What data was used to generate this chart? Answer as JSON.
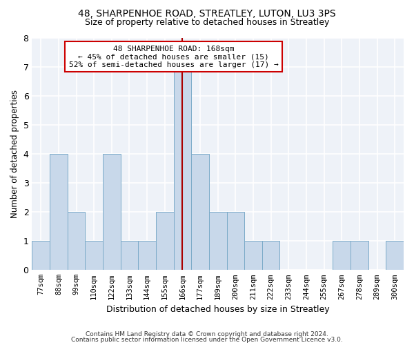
{
  "title": "48, SHARPENHOE ROAD, STREATLEY, LUTON, LU3 3PS",
  "subtitle": "Size of property relative to detached houses in Streatley",
  "xlabel": "Distribution of detached houses by size in Streatley",
  "ylabel": "Number of detached properties",
  "categories": [
    "77sqm",
    "88sqm",
    "99sqm",
    "110sqm",
    "122sqm",
    "133sqm",
    "144sqm",
    "155sqm",
    "166sqm",
    "177sqm",
    "189sqm",
    "200sqm",
    "211sqm",
    "222sqm",
    "233sqm",
    "244sqm",
    "255sqm",
    "267sqm",
    "278sqm",
    "289sqm",
    "300sqm"
  ],
  "values": [
    1,
    4,
    2,
    1,
    4,
    1,
    1,
    2,
    7,
    4,
    2,
    2,
    1,
    1,
    0,
    0,
    0,
    1,
    1,
    0,
    1
  ],
  "highlight_index": 8,
  "bar_color": "#c8d8ea",
  "bar_edge_color": "#7aaac8",
  "highlight_line_color": "#aa0000",
  "annotation_text": "48 SHARPENHOE ROAD: 168sqm\n← 45% of detached houses are smaller (15)\n52% of semi-detached houses are larger (17) →",
  "annotation_box_facecolor": "#ffffff",
  "annotation_box_edge": "#cc0000",
  "ylim": [
    0,
    8
  ],
  "yticks": [
    0,
    1,
    2,
    3,
    4,
    5,
    6,
    7,
    8
  ],
  "footer1": "Contains HM Land Registry data © Crown copyright and database right 2024.",
  "footer2": "Contains public sector information licensed under the Open Government Licence v3.0.",
  "bg_color": "#ffffff",
  "plot_bg_color": "#eef2f8"
}
